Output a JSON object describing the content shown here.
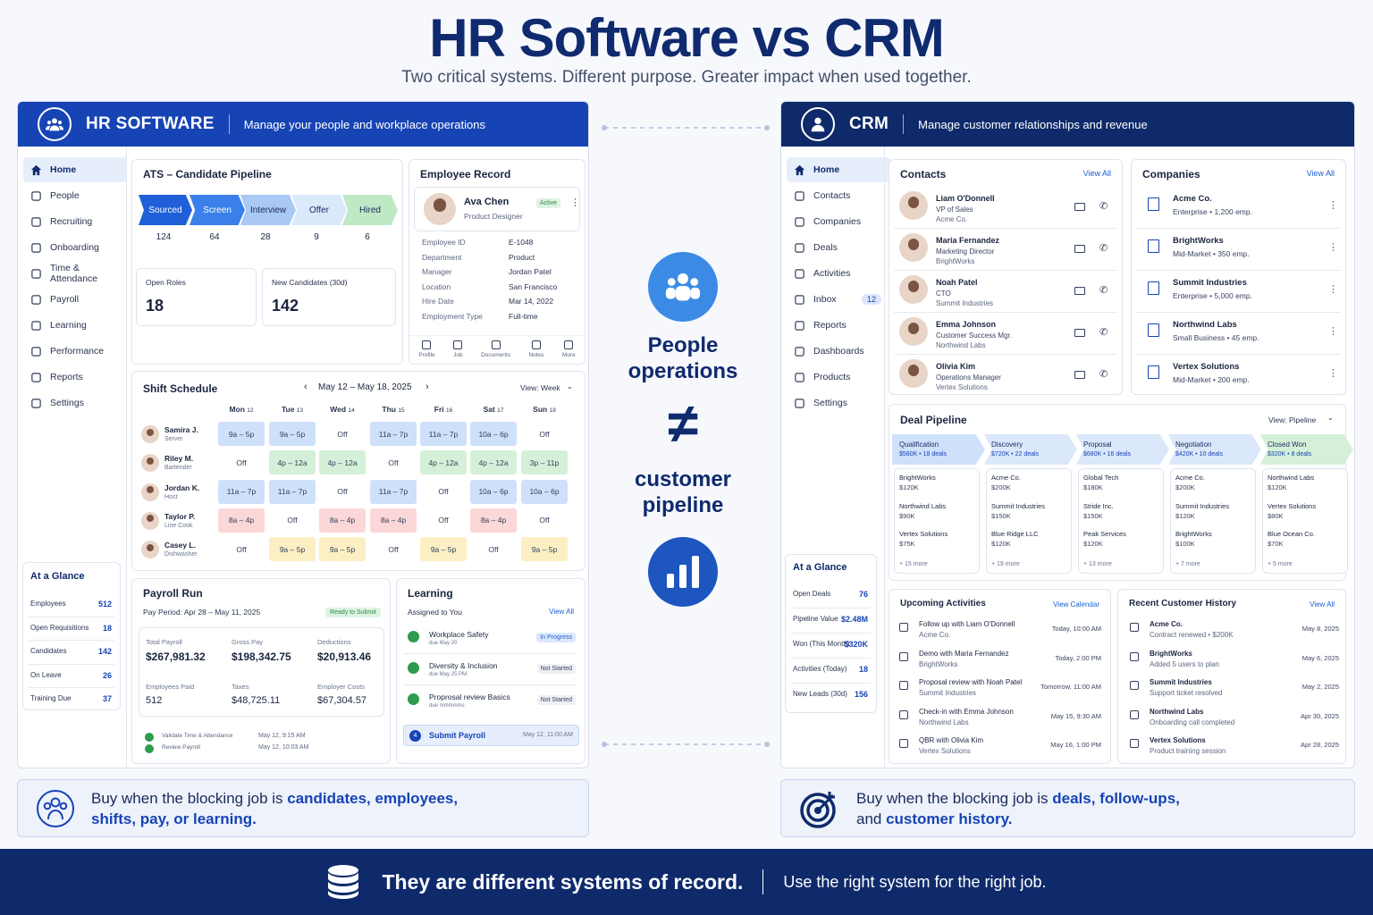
{
  "title": "HR Software vs CRM",
  "subtitle": "Two critical systems. Different purpose. Greater impact when used together.",
  "hr": {
    "title": "HR SOFTWARE",
    "tagline": "Manage your people and workplace operations",
    "nav": [
      "Home",
      "People",
      "Recruiting",
      "Onboarding",
      "Time & Attendance",
      "Payroll",
      "Learning",
      "Performance",
      "Reports",
      "Settings"
    ],
    "ats": {
      "title": "ATS – Candidate Pipeline",
      "stages": [
        {
          "label": "Sourced",
          "count": "124"
        },
        {
          "label": "Screen",
          "count": "64"
        },
        {
          "label": "Interview",
          "count": "28"
        },
        {
          "label": "Offer",
          "count": "9"
        },
        {
          "label": "Hired",
          "count": "6"
        }
      ],
      "open_roles_label": "Open Roles",
      "open_roles": "18",
      "new_cand_label": "New Candidates (30d)",
      "new_cand": "142"
    },
    "employee": {
      "title": "Employee Record",
      "name": "Ava Chen",
      "role": "Product Designer",
      "status": "Active",
      "fields": [
        [
          "Employee ID",
          "E-1048"
        ],
        [
          "Department",
          "Product"
        ],
        [
          "Manager",
          "Jordan Patel"
        ],
        [
          "Location",
          "San Francisco"
        ],
        [
          "Hire Date",
          "Mar 14, 2022"
        ],
        [
          "Employment Type",
          "Full-time"
        ]
      ],
      "tabs": [
        "Profile",
        "Job",
        "Documents",
        "Notes",
        "More"
      ]
    },
    "shift": {
      "title": "Shift Schedule",
      "range": "May 12 – May 18, 2025",
      "view": "View: Week",
      "days": [
        [
          "Mon",
          "12"
        ],
        [
          "Tue",
          "13"
        ],
        [
          "Wed",
          "14"
        ],
        [
          "Thu",
          "15"
        ],
        [
          "Fri",
          "16"
        ],
        [
          "Sat",
          "17"
        ],
        [
          "Sun",
          "18"
        ]
      ],
      "rows": [
        {
          "name": "Samira J.",
          "role": "Server",
          "cells": [
            [
              "9a – 5p",
              "blue"
            ],
            [
              "9a – 5p",
              "blue"
            ],
            [
              "Off",
              ""
            ],
            [
              "11a – 7p",
              "blue"
            ],
            [
              "11a – 7p",
              "blue"
            ],
            [
              "10a – 6p",
              "blue"
            ],
            [
              "Off",
              ""
            ]
          ]
        },
        {
          "name": "Riley M.",
          "role": "Bartender",
          "cells": [
            [
              "Off",
              ""
            ],
            [
              "4p – 12a",
              "green"
            ],
            [
              "4p – 12a",
              "green"
            ],
            [
              "Off",
              ""
            ],
            [
              "4p – 12a",
              "green"
            ],
            [
              "4p – 12a",
              "green"
            ],
            [
              "3p – 11p",
              "green"
            ]
          ]
        },
        {
          "name": "Jordan K.",
          "role": "Host",
          "cells": [
            [
              "11a – 7p",
              "blue"
            ],
            [
              "11a – 7p",
              "blue"
            ],
            [
              "Off",
              ""
            ],
            [
              "11a – 7p",
              "blue"
            ],
            [
              "Off",
              ""
            ],
            [
              "10a – 6p",
              "blue"
            ],
            [
              "10a – 6p",
              "blue"
            ]
          ]
        },
        {
          "name": "Taylor P.",
          "role": "Line Cook",
          "cells": [
            [
              "8a – 4p",
              "red"
            ],
            [
              "Off",
              ""
            ],
            [
              "8a – 4p",
              "red"
            ],
            [
              "8a – 4p",
              "red"
            ],
            [
              "Off",
              ""
            ],
            [
              "8a – 4p",
              "red"
            ],
            [
              "Off",
              ""
            ]
          ]
        },
        {
          "name": "Casey L.",
          "role": "Dishwasher",
          "cells": [
            [
              "Off",
              ""
            ],
            [
              "9a – 5p",
              "yel"
            ],
            [
              "9a – 5p",
              "yel"
            ],
            [
              "Off",
              ""
            ],
            [
              "9a – 5p",
              "yel"
            ],
            [
              "Off",
              ""
            ],
            [
              "9a – 5p",
              "yel"
            ]
          ]
        }
      ]
    },
    "glance": {
      "title": "At a Glance",
      "items": [
        [
          "Employees",
          "512"
        ],
        [
          "Open Requisitions",
          "18"
        ],
        [
          "Candidates",
          "142"
        ],
        [
          "On Leave",
          "26"
        ],
        [
          "Training Due",
          "37"
        ]
      ]
    },
    "payroll": {
      "title": "Payroll Run",
      "period": "Pay Period: Apr 28 – May 11, 2025",
      "status": "Ready to Submit",
      "stats": [
        [
          "Total Payroll",
          "$267,981.32"
        ],
        [
          "Gross Pay",
          "$198,342.75"
        ],
        [
          "Deductions",
          "$20,913.46"
        ],
        [
          "Employees Paid",
          "512"
        ],
        [
          "Taxes",
          "$48,725.11"
        ],
        [
          "Employer Costs",
          "$67,304.57"
        ]
      ],
      "steps": [
        [
          "Validate Time & Attendance",
          "May 12, 9:15 AM"
        ],
        [
          "Review Payroll",
          "May 12, 10:03 AM"
        ]
      ]
    },
    "learning": {
      "title": "Learning",
      "assigned": "Assigned to You",
      "view_all": "View All",
      "items": [
        [
          "Workplace Safety",
          "due May 20",
          "In Progress"
        ],
        [
          "Diversity & Inclusion",
          "due May 25 PM",
          "Not Started"
        ],
        [
          "Proprosal review Basics",
          "due mmmmms",
          "Not Started"
        ]
      ],
      "submit": "Submit Payroll",
      "submit_num": "4",
      "submit_time": "May 12, 11:00 AM"
    }
  },
  "middle": {
    "top": "People operations",
    "neq": "≠",
    "bottom": "customer pipeline"
  },
  "crm": {
    "title": "CRM",
    "tagline": "Manage customer relationships and revenue",
    "nav": [
      "Home",
      "Contacts",
      "Companies",
      "Deals",
      "Activities",
      "Inbox",
      "Reports",
      "Dashboards",
      "Products",
      "Settings"
    ],
    "inbox_count": "12",
    "contacts": {
      "title": "Contacts",
      "view_all": "View All",
      "items": [
        [
          "Liam O'Donnell",
          "VP of Sales",
          "Acme Co."
        ],
        [
          "Maria Fernandez",
          "Marketing Director",
          "BrightWorks"
        ],
        [
          "Noah Patel",
          "CTO",
          "Summit Industries"
        ],
        [
          "Emma Johnson",
          "Customer Success Mgr.",
          "Northwind Labs"
        ],
        [
          "Olivia Kim",
          "Operations Manager",
          "Vertex Solutions"
        ]
      ]
    },
    "companies": {
      "title": "Companies",
      "view_all": "View All",
      "items": [
        [
          "Acme Co.",
          "Enterprise • 1,200 emp."
        ],
        [
          "BrightWorks",
          "Mid-Market • 350 emp."
        ],
        [
          "Summit Industries",
          "Enterprise • 5,000 emp."
        ],
        [
          "Northwind Labs",
          "Small Business • 45 emp."
        ],
        [
          "Vertex Solutions",
          "Mid-Market • 200 emp."
        ]
      ]
    },
    "pipeline": {
      "title": "Deal Pipeline",
      "view": "View: Pipeline",
      "stages": [
        {
          "name": "Qualification",
          "sum": "$560K • 18 deals",
          "deals": [
            [
              "BrightWorks",
              "$120K"
            ],
            [
              "Northwind Labs",
              "$90K"
            ],
            [
              "Vertex Solutions",
              "$75K"
            ]
          ],
          "more": "+ 15 more"
        },
        {
          "name": "Discovery",
          "sum": "$720K • 22 deals",
          "deals": [
            [
              "Acme Co.",
              "$200K"
            ],
            [
              "Summit Industries",
              "$150K"
            ],
            [
              "Blue Ridge LLC",
              "$120K"
            ]
          ],
          "more": "+ 19 more"
        },
        {
          "name": "Proposal",
          "sum": "$680K • 16 deals",
          "deals": [
            [
              "Global Tech",
              "$180K"
            ],
            [
              "Stride Inc.",
              "$150K"
            ],
            [
              "Peak Services",
              "$120K"
            ]
          ],
          "more": "+ 13 more"
        },
        {
          "name": "Negotiation",
          "sum": "$420K • 10 deals",
          "deals": [
            [
              "Acme Co.",
              "$200K"
            ],
            [
              "Summit Industries",
              "$120K"
            ],
            [
              "BrightWorks",
              "$100K"
            ]
          ],
          "more": "+ 7 more"
        },
        {
          "name": "Closed Won",
          "sum": "$320K • 8 deals",
          "deals": [
            [
              "Northwind Labs",
              "$120K"
            ],
            [
              "Vertex Solutions",
              "$80K"
            ],
            [
              "Blue Ocean Co.",
              "$70K"
            ]
          ],
          "more": "+ 5 more"
        }
      ]
    },
    "glance": {
      "title": "At a Glance",
      "items": [
        [
          "Open Deals",
          "76"
        ],
        [
          "Pipeline Value",
          "$2.48M"
        ],
        [
          "Won (This Month)",
          "$320K"
        ],
        [
          "Activities (Today)",
          "18"
        ],
        [
          "New Leads (30d)",
          "156"
        ]
      ]
    },
    "activities": {
      "title": "Upcoming Activities",
      "view": "View Calendar",
      "items": [
        [
          "Follow up with Liam O'Donnell",
          "Acme Co.",
          "Today, 10:00 AM"
        ],
        [
          "Demo with Maria Fernandez",
          "BrightWorks",
          "Today, 2:00 PM"
        ],
        [
          "Proposal review with Noah Patel",
          "Summit Industries",
          "Tomorrow, 11:00 AM"
        ],
        [
          "Check-in with Emma Johnson",
          "Northwind Labs",
          "May 15, 9:30 AM"
        ],
        [
          "QBR with Olivia Kim",
          "Vertex Solutions",
          "May 16, 1:00 PM"
        ]
      ]
    },
    "history": {
      "title": "Recent Customer History",
      "view": "View All",
      "items": [
        [
          "Acme Co.",
          "Contract renewed • $200K",
          "May 8, 2025"
        ],
        [
          "BrightWorks",
          "Added 5 users to plan",
          "May 6, 2025"
        ],
        [
          "Summit Industries",
          "Support ticket resolved",
          "May 2, 2025"
        ],
        [
          "Northwind Labs",
          "Onboarding call completed",
          "Apr 30, 2025"
        ],
        [
          "Vertex Solutions",
          "Product training session",
          "Apr 28, 2025"
        ]
      ]
    }
  },
  "foot_hr": {
    "pre": "Buy when the blocking job is ",
    "bold1": "candidates, employees,",
    "bold2": "shifts, pay, or learning."
  },
  "foot_crm": {
    "pre": "Buy when the blocking job is ",
    "bold1": "deals, follow-ups,",
    "mid": "and ",
    "bold2": "customer history."
  },
  "band": {
    "bold": "They are different systems of record.",
    "rest": "Use the right system for the right job."
  }
}
